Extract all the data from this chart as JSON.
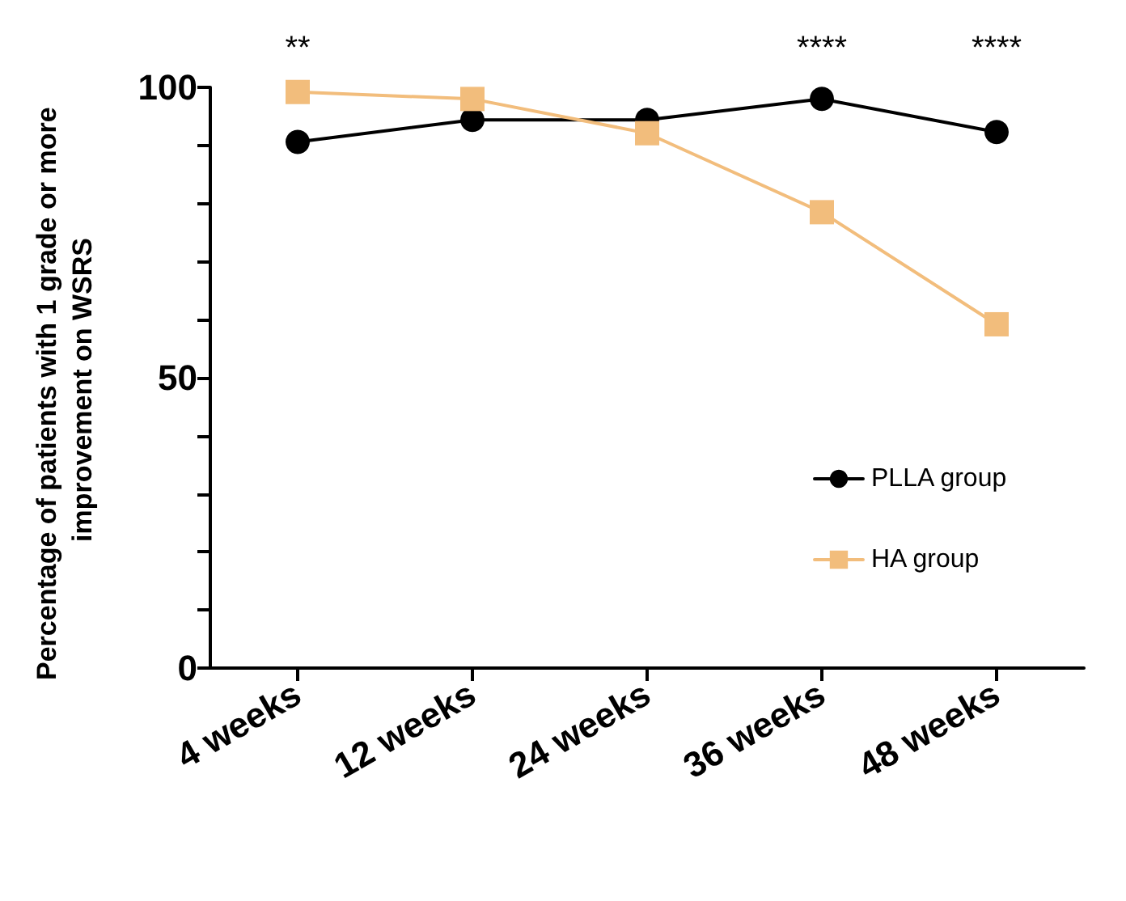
{
  "chart_data": {
    "type": "line",
    "ylabel": "Percentage of patients with 1 grade or more improvement on WSRS",
    "categories": [
      "4 weeks",
      "12 weeks",
      "24 weeks",
      "36 weeks",
      "48 weeks"
    ],
    "series": [
      {
        "name": "PLLA group",
        "color": "#000000",
        "marker": "circle",
        "values": [
          90.6,
          94.4,
          94.4,
          98.0,
          92.3
        ]
      },
      {
        "name": "HA group",
        "color": "#f2bd7c",
        "marker": "square",
        "values": [
          99.2,
          98.0,
          92.1,
          78.5,
          59.2
        ]
      }
    ],
    "ylim": [
      0,
      100
    ],
    "yticks": [
      0,
      {
        "value": 10,
        "label": null
      },
      {
        "value": 20,
        "label": null
      },
      {
        "value": 30,
        "label": null
      },
      {
        "value": 40,
        "label": null
      },
      50,
      {
        "value": 60,
        "label": null
      },
      {
        "value": 70,
        "label": null
      },
      {
        "value": 80,
        "label": null
      },
      {
        "value": 90,
        "label": null
      },
      100
    ],
    "annotations": [
      "**",
      "****",
      "****"
    ],
    "legend": "right",
    "grid": false,
    "line_style": "solid"
  }
}
